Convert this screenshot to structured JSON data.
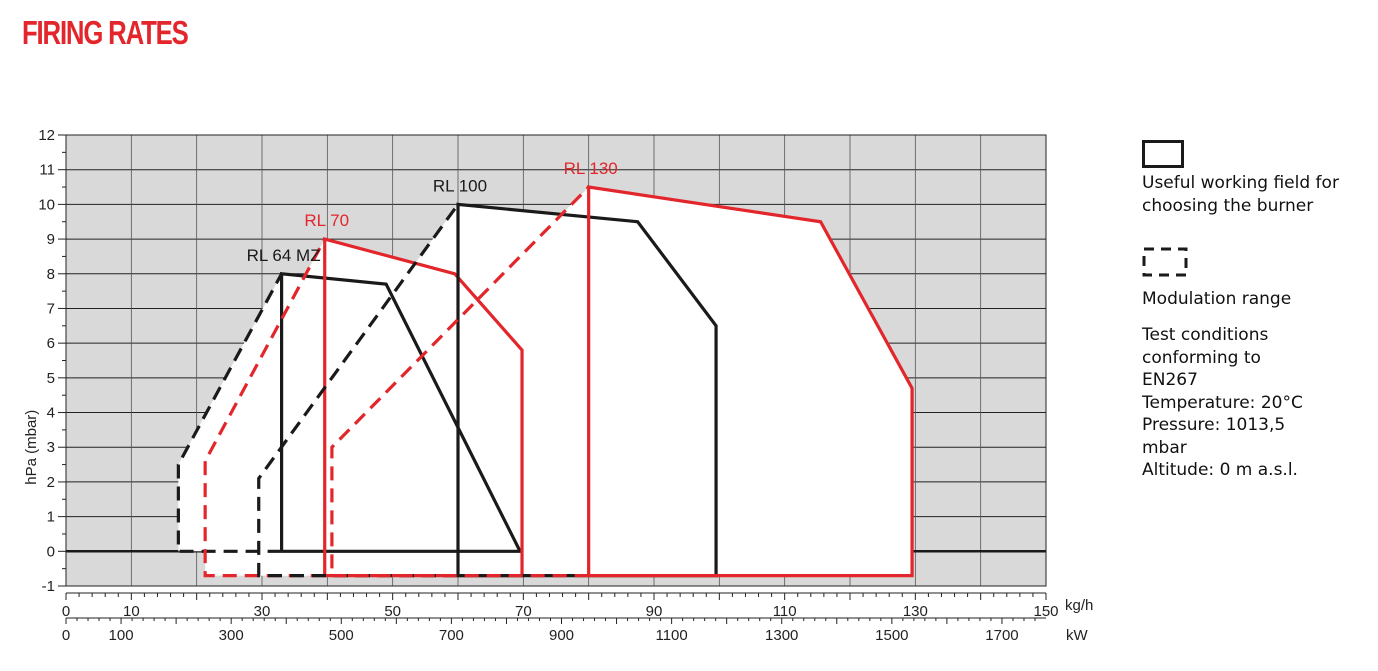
{
  "title": "FIRING RATES",
  "legend": {
    "useful_field": "Useful working field for choosing the burner",
    "modulation": "Modulation range",
    "conditions": [
      "Test conditions",
      "conforming to",
      "EN267",
      "Temperature: 20°C",
      "Pressure: 1013,5",
      "mbar",
      "Altitude: 0 m a.s.l."
    ]
  },
  "colors": {
    "black": "#1a1a1a",
    "red": "#e3262b",
    "grid_bg": "#d9d9d9"
  },
  "chart_data": {
    "type": "area",
    "ylabel": "hPa (mbar)",
    "ylim": [
      -1,
      12
    ],
    "yticks": [
      -1,
      0,
      1,
      2,
      3,
      4,
      5,
      6,
      7,
      8,
      9,
      10,
      11,
      12
    ],
    "x_axis_kgh": {
      "unit": "kg/h",
      "range": [
        0,
        150
      ],
      "tick_labels": [
        0,
        10,
        30,
        50,
        70,
        90,
        110,
        130,
        150
      ]
    },
    "x_axis_kw": {
      "unit": "kW",
      "range": [
        0,
        1780
      ],
      "tick_labels": [
        0,
        100,
        300,
        500,
        700,
        900,
        1100,
        1300,
        1500,
        1700
      ]
    },
    "grid": true,
    "series": [
      {
        "name": "RL 64 MZ",
        "color": "black",
        "working_field": [
          [
            33,
            0
          ],
          [
            33,
            8
          ],
          [
            49,
            7.7
          ],
          [
            69.5,
            0
          ],
          [
            33,
            0
          ]
        ],
        "modulation": [
          [
            17.2,
            0
          ],
          [
            17.2,
            2.5
          ],
          [
            33,
            8
          ]
        ]
      },
      {
        "name": "RL 70",
        "color": "red",
        "working_field": [
          [
            39.6,
            -0.7
          ],
          [
            39.6,
            9
          ],
          [
            59.5,
            8
          ],
          [
            69.8,
            5.8
          ],
          [
            69.8,
            -0.7
          ],
          [
            39.6,
            -0.7
          ]
        ],
        "modulation": [
          [
            21.3,
            -0.7
          ],
          [
            21.3,
            2.6
          ],
          [
            39.6,
            9
          ]
        ]
      },
      {
        "name": "RL 100",
        "color": "black",
        "working_field": [
          [
            60,
            -0.7
          ],
          [
            60,
            10
          ],
          [
            87.5,
            9.5
          ],
          [
            99.5,
            6.5
          ],
          [
            99.5,
            -0.7
          ],
          [
            60,
            -0.7
          ]
        ],
        "modulation": [
          [
            29.5,
            -0.7
          ],
          [
            29.5,
            2.1
          ],
          [
            60,
            10
          ]
        ]
      },
      {
        "name": "RL 130",
        "color": "red",
        "working_field": [
          [
            80,
            -0.7
          ],
          [
            80,
            10.5
          ],
          [
            115.5,
            9.5
          ],
          [
            129.5,
            4.7
          ],
          [
            129.5,
            -0.7
          ],
          [
            80,
            -0.7
          ]
        ],
        "modulation": [
          [
            40.7,
            -0.7
          ],
          [
            40.7,
            3
          ],
          [
            80,
            10.5
          ]
        ]
      }
    ]
  }
}
